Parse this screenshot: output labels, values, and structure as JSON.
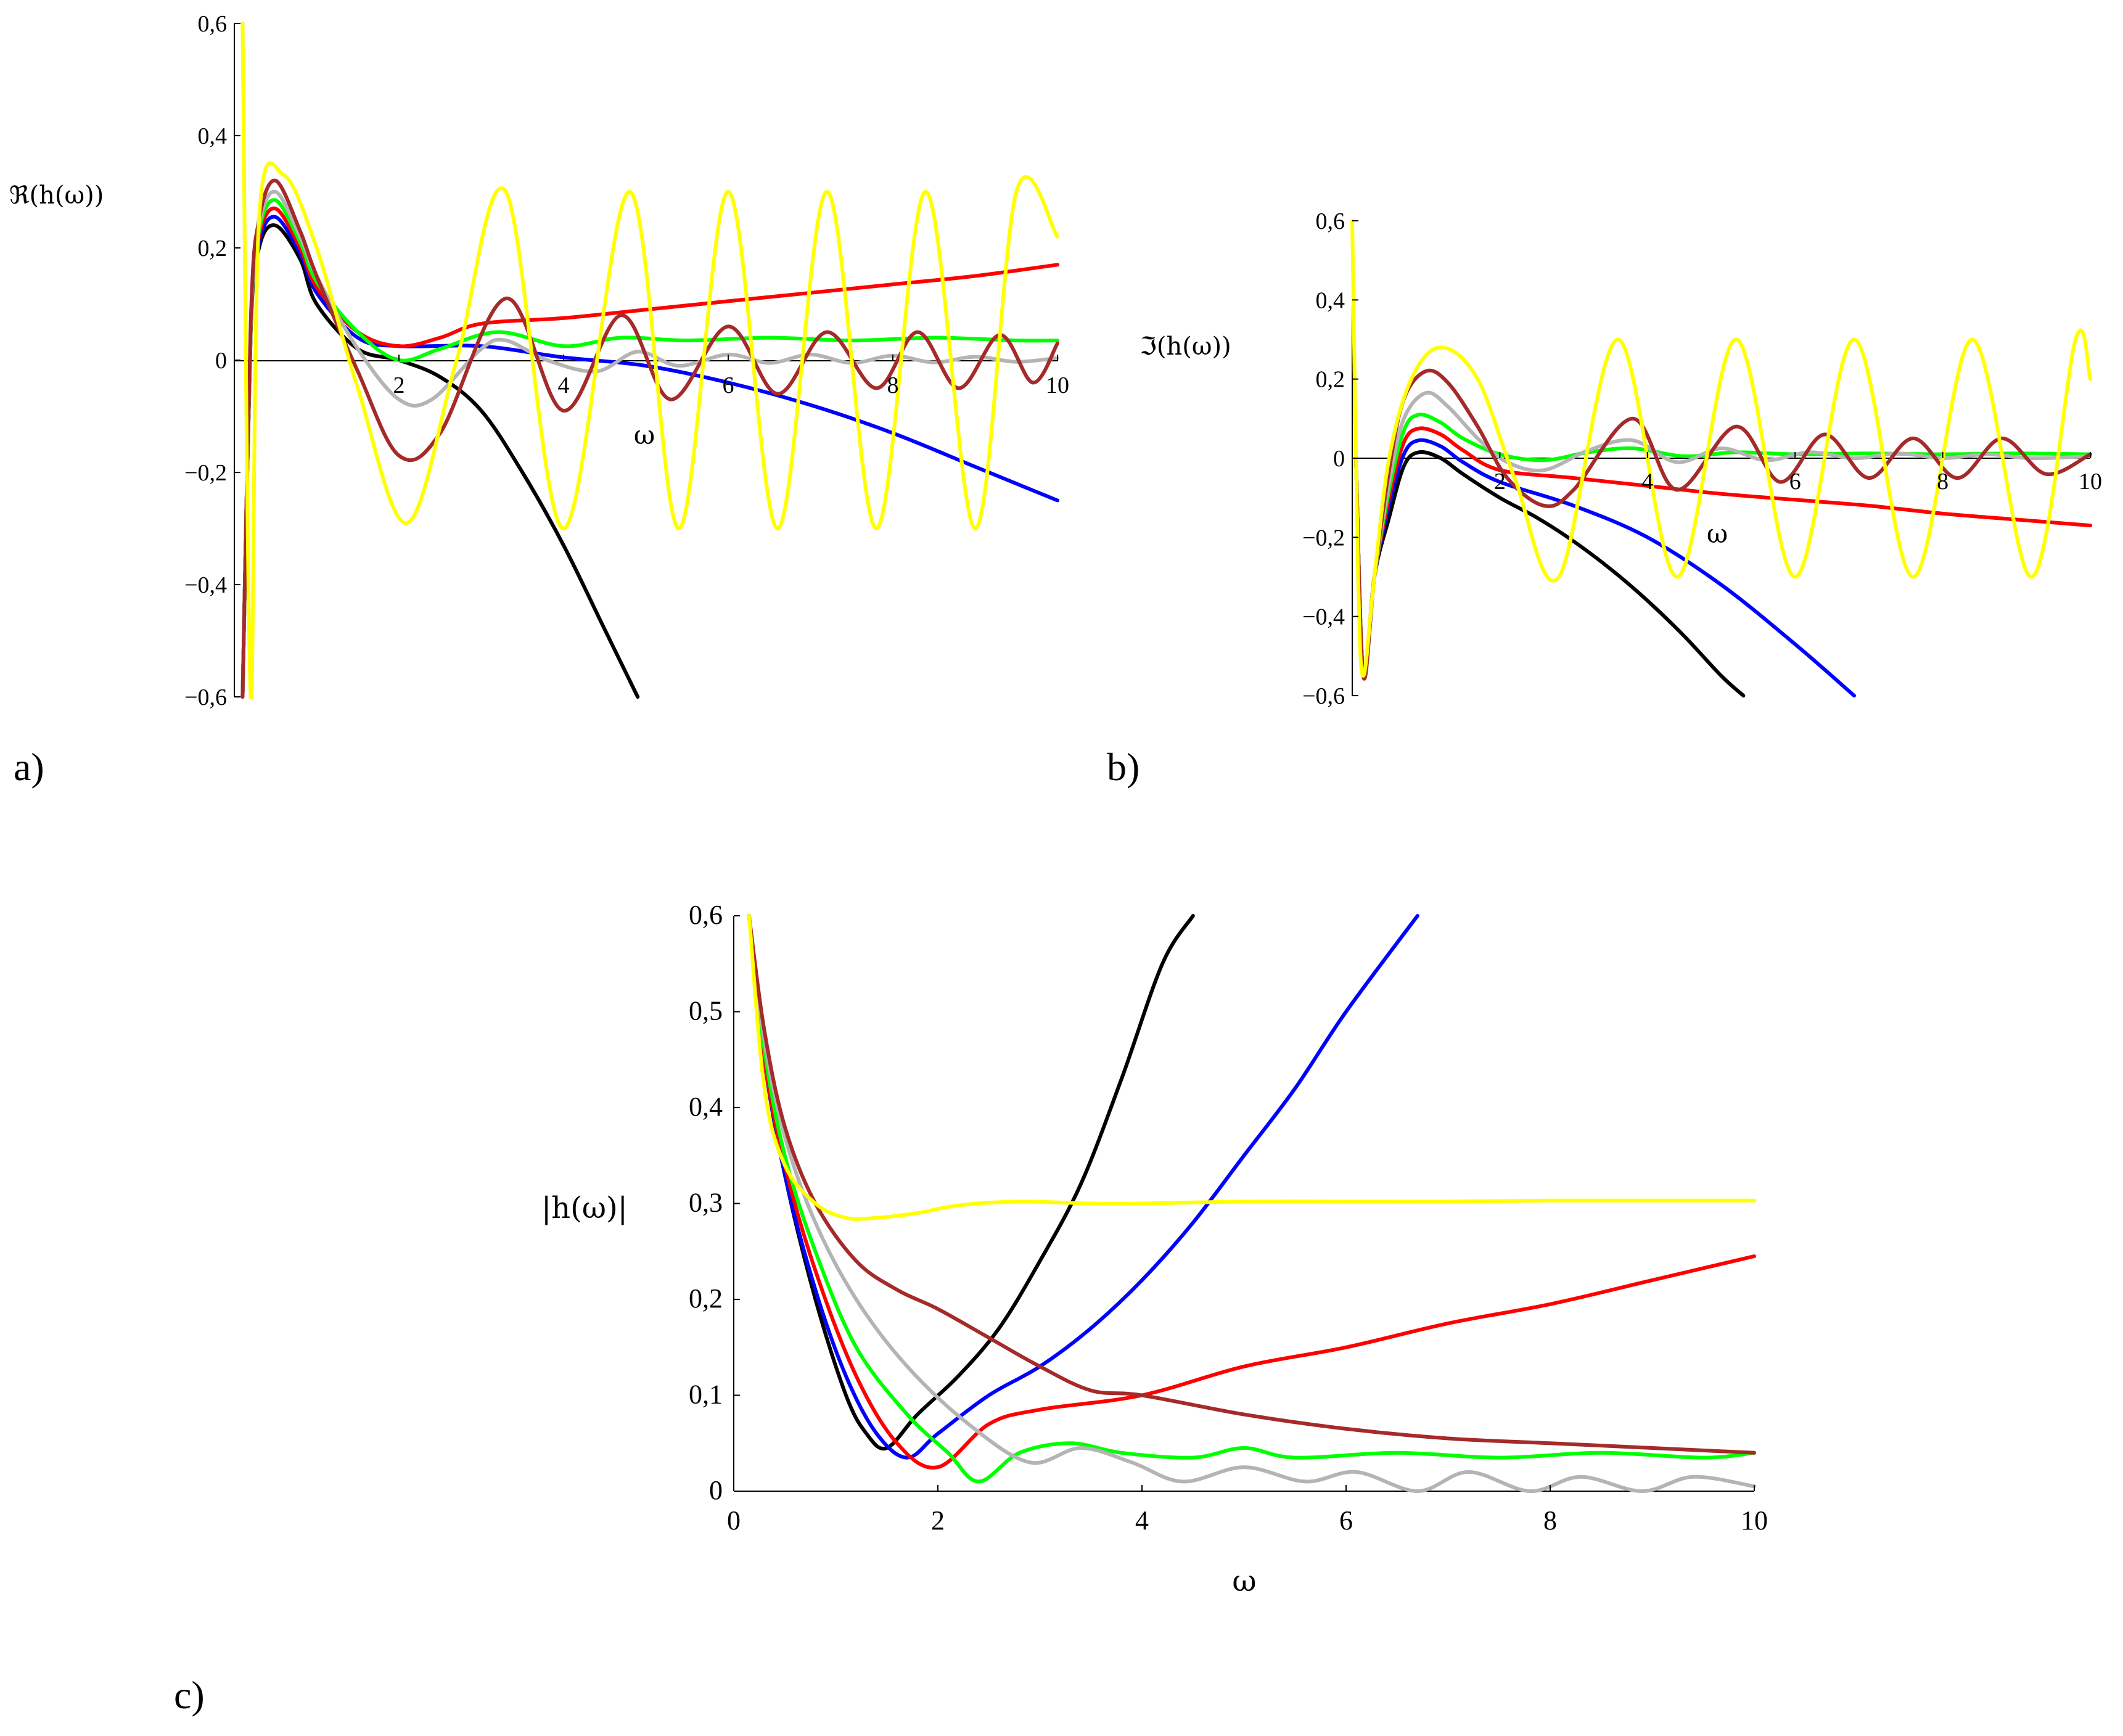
{
  "figure": {
    "panel_labels": [
      "a)",
      "b)",
      "c)"
    ]
  },
  "chart_data": [
    {
      "type": "line",
      "panel": "a)",
      "title": "",
      "xlabel": "ω",
      "ylabel": "ℜ(h(ω))",
      "xlim": [
        0,
        10
      ],
      "ylim": [
        -0.6,
        0.6
      ],
      "xticks": [
        2,
        4,
        6,
        8,
        10
      ],
      "xtick_labels": [
        "2",
        "4",
        "6",
        "8",
        "10"
      ],
      "yticks": [
        0.6,
        0.4,
        0.2,
        0,
        -0.2,
        -0.4,
        -0.6
      ],
      "ytick_labels": [
        "0,6",
        "0,4",
        "0,2",
        "0",
        "−0,2",
        "−0,4",
        "−0,6"
      ],
      "grid": false,
      "series": [
        {
          "name": "black",
          "color": "#000000",
          "x": [
            0.1,
            0.2,
            0.3,
            0.5,
            0.8,
            1.0,
            1.5,
            2.0,
            2.5,
            3.0,
            3.5,
            4.0,
            4.5,
            4.9
          ],
          "y": [
            -0.6,
            0.05,
            0.2,
            0.24,
            0.18,
            0.1,
            0.02,
            0.0,
            -0.03,
            -0.09,
            -0.2,
            -0.33,
            -0.48,
            -0.6
          ]
        },
        {
          "name": "blue",
          "color": "#0000ff",
          "x": [
            0.1,
            0.2,
            0.3,
            0.5,
            0.8,
            1.0,
            1.5,
            2.0,
            3.0,
            4.0,
            5.0,
            6.0,
            7.0,
            8.0,
            9.0,
            10.0
          ],
          "y": [
            -0.6,
            0.06,
            0.21,
            0.255,
            0.19,
            0.12,
            0.04,
            0.025,
            0.025,
            0.005,
            -0.01,
            -0.04,
            -0.08,
            -0.13,
            -0.19,
            -0.25
          ]
        },
        {
          "name": "red",
          "color": "#ff0000",
          "x": [
            0.1,
            0.2,
            0.3,
            0.5,
            0.8,
            1.0,
            1.5,
            2.0,
            2.5,
            3.0,
            4.0,
            5.0,
            6.0,
            7.0,
            8.0,
            9.0,
            10.0
          ],
          "y": [
            -0.6,
            0.06,
            0.22,
            0.27,
            0.2,
            0.13,
            0.05,
            0.025,
            0.04,
            0.065,
            0.075,
            0.09,
            0.105,
            0.12,
            0.135,
            0.15,
            0.17
          ]
        },
        {
          "name": "green",
          "color": "#00ff00",
          "x": [
            0.1,
            0.2,
            0.3,
            0.5,
            0.8,
            1.0,
            1.5,
            2.0,
            2.5,
            3.2,
            4.0,
            4.7,
            5.5,
            6.5,
            7.5,
            8.5,
            9.5,
            10.0
          ],
          "y": [
            -0.6,
            0.06,
            0.23,
            0.285,
            0.21,
            0.14,
            0.05,
            0.0,
            0.02,
            0.05,
            0.025,
            0.04,
            0.035,
            0.04,
            0.035,
            0.04,
            0.035,
            0.035
          ]
        },
        {
          "name": "gray",
          "color": "#b4b4b4",
          "x": [
            0.1,
            0.2,
            0.3,
            0.5,
            0.8,
            1.0,
            1.5,
            2.0,
            2.4,
            3.0,
            3.3,
            3.8,
            4.4,
            4.9,
            5.4,
            6.0,
            6.5,
            7.0,
            7.5,
            8.0,
            8.5,
            9.0,
            9.5,
            10.0
          ],
          "y": [
            -0.6,
            0.06,
            0.24,
            0.3,
            0.22,
            0.15,
            0.02,
            -0.07,
            -0.07,
            0.02,
            0.035,
            0.0,
            -0.02,
            0.015,
            -0.01,
            0.01,
            -0.005,
            0.01,
            -0.005,
            0.008,
            -0.004,
            0.006,
            -0.003,
            0.004
          ]
        },
        {
          "name": "brown",
          "color": "#a52a2a",
          "x": [
            0.1,
            0.2,
            0.3,
            0.5,
            0.8,
            1.0,
            1.5,
            2.0,
            2.5,
            3.3,
            4.0,
            4.7,
            5.3,
            6.0,
            6.6,
            7.2,
            7.8,
            8.3,
            8.8,
            9.3,
            9.7,
            10.0
          ],
          "y": [
            -0.6,
            0.07,
            0.25,
            0.32,
            0.23,
            0.15,
            -0.02,
            -0.17,
            -0.13,
            0.11,
            -0.09,
            0.08,
            -0.07,
            0.06,
            -0.06,
            0.05,
            -0.05,
            0.05,
            -0.05,
            0.045,
            -0.04,
            0.03
          ]
        },
        {
          "name": "yellow",
          "color": "#ffff00",
          "x": [
            0.1,
            0.2,
            0.3,
            0.6,
            1.0,
            1.5,
            2.1,
            2.7,
            3.3,
            4.0,
            4.8,
            5.4,
            6.0,
            6.6,
            7.2,
            7.8,
            8.4,
            9.0,
            9.5,
            10.0
          ],
          "y": [
            0.6,
            -0.6,
            0.25,
            0.33,
            0.2,
            -0.05,
            -0.29,
            0.0,
            0.3,
            -0.3,
            0.3,
            -0.3,
            0.3,
            -0.3,
            0.3,
            -0.3,
            0.3,
            -0.3,
            0.3,
            0.22
          ]
        }
      ]
    },
    {
      "type": "line",
      "panel": "b)",
      "title": "",
      "xlabel": "ω",
      "ylabel": "ℑ(h(ω))",
      "xlim": [
        0,
        10
      ],
      "ylim": [
        -0.6,
        0.6
      ],
      "xticks": [
        2,
        4,
        6,
        8,
        10
      ],
      "xtick_labels": [
        "2",
        "4",
        "6",
        "8",
        "10"
      ],
      "yticks": [
        0.6,
        0.4,
        0.2,
        0,
        -0.2,
        -0.4,
        -0.6
      ],
      "ytick_labels": [
        "0,6",
        "0,4",
        "0,2",
        "0",
        "−0,2",
        "−0,4",
        "−0,6"
      ],
      "grid": false,
      "series": [
        {
          "name": "black",
          "color": "#000000",
          "x": [
            0.05,
            0.15,
            0.3,
            0.5,
            0.7,
            0.9,
            1.2,
            1.5,
            2.0,
            2.5,
            3.0,
            3.5,
            4.0,
            4.5,
            5.0,
            5.3
          ],
          "y": [
            0.0,
            -0.55,
            -0.3,
            -0.15,
            -0.02,
            0.015,
            0.0,
            -0.04,
            -0.1,
            -0.15,
            -0.21,
            -0.28,
            -0.36,
            -0.45,
            -0.55,
            -0.6
          ]
        },
        {
          "name": "blue",
          "color": "#0000ff",
          "x": [
            0.05,
            0.15,
            0.3,
            0.5,
            0.7,
            0.9,
            1.2,
            1.5,
            2.0,
            3.0,
            4.0,
            5.0,
            6.0,
            6.8
          ],
          "y": [
            0.0,
            -0.55,
            -0.3,
            -0.12,
            0.01,
            0.045,
            0.03,
            -0.01,
            -0.06,
            -0.12,
            -0.2,
            -0.32,
            -0.47,
            -0.6
          ]
        },
        {
          "name": "red",
          "color": "#ff0000",
          "x": [
            0.05,
            0.15,
            0.3,
            0.5,
            0.7,
            0.9,
            1.2,
            1.5,
            2.0,
            3.0,
            4.0,
            5.0,
            6.0,
            7.0,
            8.0,
            9.0,
            10.0
          ],
          "y": [
            0.0,
            -0.55,
            -0.3,
            -0.1,
            0.04,
            0.075,
            0.06,
            0.02,
            -0.03,
            -0.05,
            -0.07,
            -0.09,
            -0.105,
            -0.12,
            -0.14,
            -0.155,
            -0.17
          ]
        },
        {
          "name": "green",
          "color": "#00ff00",
          "x": [
            0.05,
            0.15,
            0.3,
            0.5,
            0.7,
            0.9,
            1.2,
            1.5,
            2.0,
            2.6,
            3.2,
            3.8,
            4.5,
            5.2,
            6.0,
            7.0,
            8.0,
            9.0,
            10.0
          ],
          "y": [
            0.0,
            -0.55,
            -0.3,
            -0.08,
            0.07,
            0.11,
            0.09,
            0.05,
            0.01,
            -0.005,
            0.015,
            0.025,
            0.005,
            0.015,
            0.01,
            0.012,
            0.01,
            0.012,
            0.01
          ]
        },
        {
          "name": "gray",
          "color": "#b4b4b4",
          "x": [
            0.05,
            0.15,
            0.3,
            0.5,
            0.7,
            1.0,
            1.3,
            1.7,
            2.1,
            2.6,
            3.2,
            3.8,
            4.4,
            5.0,
            5.6,
            6.2,
            6.8,
            7.4,
            8.0,
            8.6,
            9.2,
            10.0
          ],
          "y": [
            0.0,
            -0.55,
            -0.3,
            -0.06,
            0.1,
            0.165,
            0.13,
            0.05,
            -0.01,
            -0.03,
            0.02,
            0.045,
            -0.01,
            0.025,
            -0.005,
            0.015,
            0.0,
            0.012,
            0.0,
            0.01,
            0.0,
            0.005
          ]
        },
        {
          "name": "brown",
          "color": "#a52a2a",
          "x": [
            0.05,
            0.15,
            0.3,
            0.5,
            0.7,
            1.0,
            1.3,
            1.7,
            2.1,
            2.6,
            3.0,
            3.8,
            4.4,
            5.2,
            5.8,
            6.4,
            7.0,
            7.6,
            8.2,
            8.8,
            9.4,
            10.0
          ],
          "y": [
            0.0,
            -0.55,
            -0.3,
            -0.03,
            0.15,
            0.22,
            0.19,
            0.08,
            -0.05,
            -0.12,
            -0.08,
            0.1,
            -0.08,
            0.08,
            -0.06,
            0.06,
            -0.05,
            0.05,
            -0.05,
            0.05,
            -0.04,
            0.01
          ]
        },
        {
          "name": "yellow",
          "color": "#ffff00",
          "x": [
            0.0,
            0.08,
            0.15,
            0.3,
            0.5,
            0.8,
            1.2,
            1.7,
            2.2,
            2.8,
            3.6,
            4.4,
            5.2,
            6.0,
            6.8,
            7.6,
            8.4,
            9.2,
            9.8,
            10.0
          ],
          "y": [
            0.6,
            -0.3,
            -0.55,
            -0.3,
            0.0,
            0.2,
            0.28,
            0.2,
            -0.05,
            -0.3,
            0.3,
            -0.3,
            0.3,
            -0.3,
            0.3,
            -0.3,
            0.3,
            -0.3,
            0.3,
            0.2
          ]
        }
      ]
    },
    {
      "type": "line",
      "panel": "c)",
      "title": "",
      "xlabel": "ω",
      "ylabel": "|h(ω)|",
      "xlim": [
        0,
        10
      ],
      "ylim": [
        0,
        0.6
      ],
      "xticks": [
        0,
        2,
        4,
        6,
        8,
        10
      ],
      "xtick_labels": [
        "0",
        "2",
        "4",
        "6",
        "8",
        "10"
      ],
      "yticks": [
        0.6,
        0.5,
        0.4,
        0.3,
        0.2,
        0.1,
        0
      ],
      "ytick_labels": [
        "0,6",
        "0,5",
        "0,4",
        "0,3",
        "0,2",
        "0,1",
        "0"
      ],
      "grid": false,
      "series": [
        {
          "name": "black",
          "color": "#000000",
          "x": [
            0.15,
            0.3,
            0.5,
            0.8,
            1.1,
            1.3,
            1.5,
            1.8,
            2.2,
            2.6,
            3.0,
            3.4,
            3.8,
            4.2,
            4.5
          ],
          "y": [
            0.6,
            0.45,
            0.33,
            0.2,
            0.1,
            0.06,
            0.045,
            0.08,
            0.12,
            0.17,
            0.24,
            0.32,
            0.43,
            0.55,
            0.6
          ]
        },
        {
          "name": "blue",
          "color": "#0000ff",
          "x": [
            0.15,
            0.3,
            0.5,
            0.8,
            1.1,
            1.4,
            1.7,
            2.0,
            2.5,
            3.0,
            3.5,
            4.0,
            4.5,
            5.0,
            5.5,
            6.0,
            6.7
          ],
          "y": [
            0.6,
            0.45,
            0.33,
            0.21,
            0.12,
            0.06,
            0.035,
            0.06,
            0.1,
            0.13,
            0.17,
            0.22,
            0.28,
            0.35,
            0.42,
            0.5,
            0.6
          ]
        },
        {
          "name": "red",
          "color": "#ff0000",
          "x": [
            0.15,
            0.3,
            0.5,
            0.8,
            1.2,
            1.6,
            2.0,
            2.5,
            3.0,
            4.0,
            5.0,
            6.0,
            7.0,
            8.0,
            9.0,
            10.0
          ],
          "y": [
            0.6,
            0.45,
            0.34,
            0.23,
            0.12,
            0.05,
            0.025,
            0.07,
            0.085,
            0.1,
            0.13,
            0.15,
            0.175,
            0.195,
            0.22,
            0.245
          ]
        },
        {
          "name": "green",
          "color": "#00ff00",
          "x": [
            0.15,
            0.3,
            0.5,
            0.8,
            1.2,
            1.7,
            2.1,
            2.4,
            2.8,
            3.3,
            3.8,
            4.5,
            5.0,
            5.5,
            6.5,
            7.5,
            8.5,
            9.5,
            10.0
          ],
          "y": [
            0.6,
            0.46,
            0.35,
            0.25,
            0.15,
            0.08,
            0.04,
            0.01,
            0.04,
            0.05,
            0.04,
            0.035,
            0.045,
            0.035,
            0.04,
            0.035,
            0.04,
            0.035,
            0.04
          ]
        },
        {
          "name": "gray",
          "color": "#b4b4b4",
          "x": [
            0.15,
            0.3,
            0.5,
            0.8,
            1.2,
            1.7,
            2.3,
            2.9,
            3.4,
            3.9,
            4.4,
            5.0,
            5.6,
            6.1,
            6.7,
            7.2,
            7.8,
            8.3,
            8.9,
            9.4,
            10.0
          ],
          "y": [
            0.6,
            0.47,
            0.37,
            0.28,
            0.2,
            0.13,
            0.07,
            0.03,
            0.045,
            0.03,
            0.01,
            0.025,
            0.01,
            0.02,
            0.0,
            0.02,
            0.0,
            0.015,
            0.0,
            0.015,
            0.005
          ]
        },
        {
          "name": "brown",
          "color": "#a52a2a",
          "x": [
            0.15,
            0.3,
            0.5,
            0.8,
            1.2,
            1.6,
            2.0,
            2.5,
            3.0,
            3.5,
            4.0,
            5.0,
            6.0,
            7.0,
            8.0,
            9.0,
            10.0
          ],
          "y": [
            0.6,
            0.48,
            0.38,
            0.3,
            0.24,
            0.21,
            0.19,
            0.16,
            0.13,
            0.105,
            0.1,
            0.08,
            0.065,
            0.055,
            0.05,
            0.045,
            0.04
          ]
        },
        {
          "name": "yellow",
          "color": "#ffff00",
          "x": [
            0.15,
            0.3,
            0.5,
            0.8,
            1.1,
            1.4,
            1.8,
            2.2,
            2.8,
            3.5,
            4.0,
            5.0,
            6.0,
            7.0,
            8.0,
            9.0,
            10.0
          ],
          "y": [
            0.6,
            0.42,
            0.34,
            0.3,
            0.285,
            0.285,
            0.29,
            0.298,
            0.302,
            0.3,
            0.3,
            0.302,
            0.302,
            0.302,
            0.303,
            0.303,
            0.303
          ]
        }
      ]
    }
  ]
}
